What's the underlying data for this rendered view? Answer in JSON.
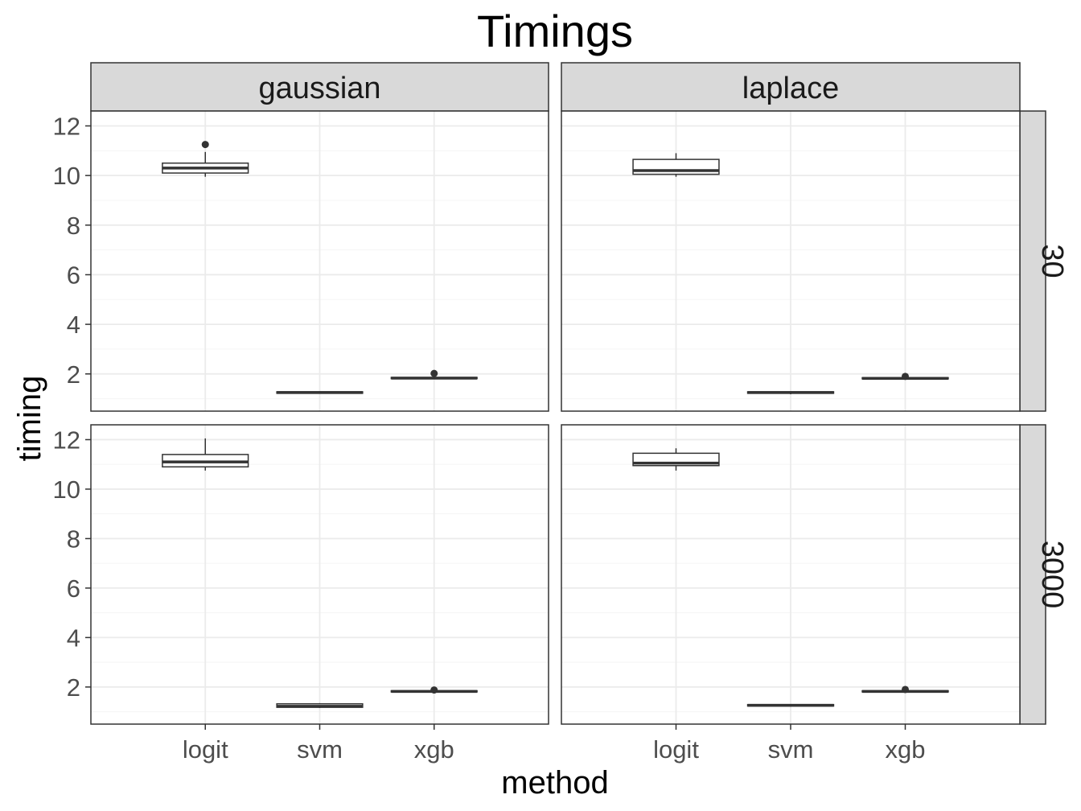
{
  "chart_data": {
    "type": "boxplot",
    "title": "Timings",
    "xlabel": "method",
    "ylabel": "timing",
    "ylim": [
      0.5,
      12.6
    ],
    "yticks": [
      2,
      4,
      6,
      8,
      10,
      12
    ],
    "categories": [
      "logit",
      "svm",
      "xgb"
    ],
    "facet_cols": [
      "gaussian",
      "laplace"
    ],
    "facet_rows": [
      "30",
      "3000"
    ],
    "grid": true,
    "colors": {
      "panel_border": "#333333",
      "strip_fill": "#d9d9d9",
      "grid_major": "#ebebeb",
      "grid_minor": "#f5f5f5",
      "box_line": "#333333",
      "box_fill": "#ffffff"
    },
    "panels": [
      {
        "row": "30",
        "col": "gaussian",
        "boxes": [
          {
            "method": "logit",
            "min": 9.95,
            "q1": 10.1,
            "median": 10.3,
            "q3": 10.5,
            "max": 10.95,
            "outliers": [
              11.25
            ]
          },
          {
            "method": "svm",
            "min": 1.2,
            "q1": 1.22,
            "median": 1.25,
            "q3": 1.28,
            "max": 1.3,
            "outliers": []
          },
          {
            "method": "xgb",
            "min": 1.8,
            "q1": 1.81,
            "median": 1.83,
            "q3": 1.86,
            "max": 1.9,
            "outliers": [
              2.02
            ]
          }
        ]
      },
      {
        "row": "30",
        "col": "laplace",
        "boxes": [
          {
            "method": "logit",
            "min": 9.95,
            "q1": 10.05,
            "median": 10.2,
            "q3": 10.65,
            "max": 10.9,
            "outliers": []
          },
          {
            "method": "svm",
            "min": 1.18,
            "q1": 1.22,
            "median": 1.25,
            "q3": 1.28,
            "max": 1.3,
            "outliers": []
          },
          {
            "method": "xgb",
            "min": 1.78,
            "q1": 1.8,
            "median": 1.82,
            "q3": 1.85,
            "max": 1.88,
            "outliers": [
              1.9
            ]
          }
        ]
      },
      {
        "row": "3000",
        "col": "gaussian",
        "boxes": [
          {
            "method": "logit",
            "min": 10.75,
            "q1": 10.9,
            "median": 11.1,
            "q3": 11.4,
            "max": 12.05,
            "outliers": []
          },
          {
            "method": "svm",
            "min": 1.15,
            "q1": 1.18,
            "median": 1.22,
            "q3": 1.32,
            "max": 1.35,
            "outliers": []
          },
          {
            "method": "xgb",
            "min": 1.78,
            "q1": 1.8,
            "median": 1.82,
            "q3": 1.85,
            "max": 1.88,
            "outliers": [
              1.88
            ]
          }
        ]
      },
      {
        "row": "3000",
        "col": "laplace",
        "boxes": [
          {
            "method": "logit",
            "min": 10.75,
            "q1": 10.95,
            "median": 11.05,
            "q3": 11.45,
            "max": 11.65,
            "outliers": []
          },
          {
            "method": "svm",
            "min": 1.2,
            "q1": 1.23,
            "median": 1.26,
            "q3": 1.29,
            "max": 1.31,
            "outliers": []
          },
          {
            "method": "xgb",
            "min": 1.78,
            "q1": 1.8,
            "median": 1.82,
            "q3": 1.85,
            "max": 1.88,
            "outliers": [
              1.9
            ]
          }
        ]
      }
    ]
  }
}
